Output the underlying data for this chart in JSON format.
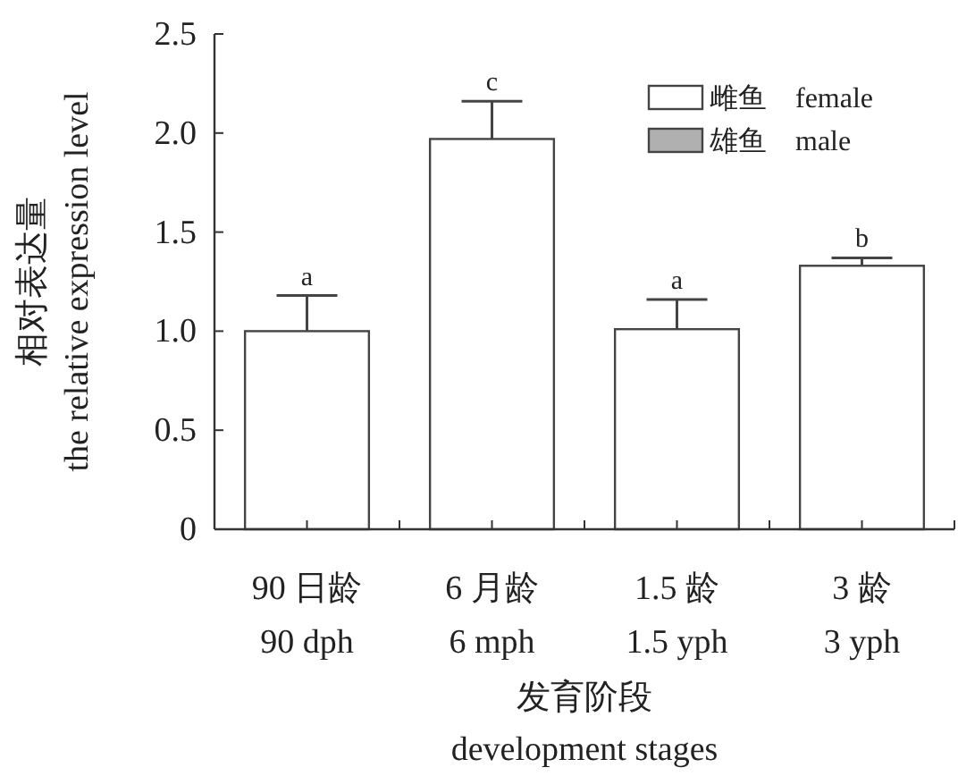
{
  "chart_data": {
    "type": "bar",
    "ylabel": "相对表达量\nthe relative expression level",
    "xlabel": "发育阶段\ndevelopment stages",
    "categories": [
      "90 日龄\n90 dph",
      "6 月龄\n6 mph",
      "1.5 龄\n1.5 yph",
      "3 龄\n3 yph"
    ],
    "series": [
      {
        "name": "雌鱼　female",
        "color": "#ffffff",
        "values": [
          1.0,
          1.97,
          1.01,
          1.33
        ],
        "errors": [
          0.18,
          0.19,
          0.15,
          0.04
        ]
      },
      {
        "name": "雄鱼　male",
        "color": "#b0b0b0",
        "values": [
          null,
          null,
          null,
          null
        ]
      }
    ],
    "ylim": [
      0,
      2.5
    ],
    "yticks": [
      0,
      0.5,
      {
        "value": 1,
        "label": "1.0"
      },
      1.5,
      {
        "value": 2,
        "label": "2.0"
      },
      2.5
    ],
    "annotations": [
      {
        "text": "a",
        "x": "90 日龄\n90 dph",
        "y": 1.18
      },
      {
        "text": "c",
        "x": "6 月龄\n6 mph",
        "y": 2.16
      },
      {
        "text": "a",
        "x": "1.5 龄\n1.5 yph",
        "y": 1.16
      },
      {
        "text": "b",
        "x": "3 龄\n3 yph",
        "y": 1.37
      }
    ],
    "legend": "top right"
  }
}
